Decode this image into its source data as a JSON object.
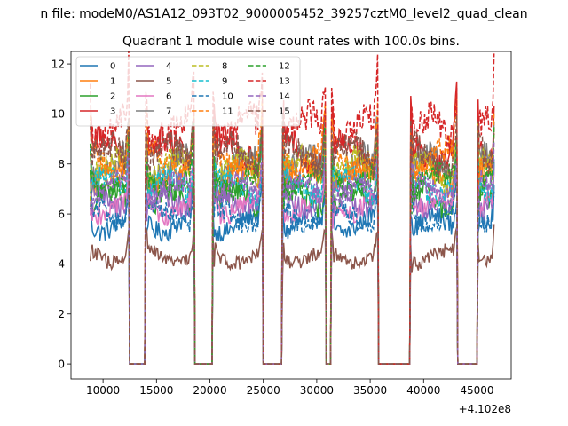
{
  "chart_data": {
    "type": "line",
    "suptitle": "n file: modeM0/AS1A12_093T02_9000005452_39257cztM0_level2_quad_clean",
    "title": "Quadrant 1 module wise count rates with 100.0s bins.",
    "xlabel": "",
    "ylabel": "",
    "x_offset_label": "+4.102e8",
    "xlim": [
      7000,
      48200
    ],
    "ylim": [
      -0.6,
      12.5
    ],
    "xticks": [
      10000,
      15000,
      20000,
      25000,
      30000,
      35000,
      40000,
      45000
    ],
    "yticks": [
      0,
      2,
      4,
      6,
      8,
      10,
      12
    ],
    "legend_position": "upper-left",
    "legend_columns": 4,
    "active_segments": [
      [
        8800,
        12400
      ],
      [
        14000,
        18500
      ],
      [
        20300,
        24900
      ],
      [
        26800,
        30800
      ],
      [
        31400,
        35700
      ],
      [
        38800,
        43100
      ],
      [
        45100,
        46600
      ]
    ],
    "gap_value": 0,
    "series": [
      {
        "name": "0",
        "level": 5.6,
        "color": "#1f77b4",
        "dash": "solid"
      },
      {
        "name": "1",
        "level": 7.5,
        "color": "#ff7f0e",
        "dash": "solid"
      },
      {
        "name": "2",
        "level": 6.6,
        "color": "#2ca02c",
        "dash": "solid"
      },
      {
        "name": "3",
        "level": 8.6,
        "color": "#d62728",
        "dash": "solid"
      },
      {
        "name": "4",
        "level": 6.6,
        "color": "#9467bd",
        "dash": "solid"
      },
      {
        "name": "5",
        "level": 4.3,
        "color": "#8c564b",
        "dash": "solid"
      },
      {
        "name": "6",
        "level": 6.3,
        "color": "#e377c2",
        "dash": "solid"
      },
      {
        "name": "7",
        "level": 7.9,
        "color": "#7f7f7f",
        "dash": "solid"
      },
      {
        "name": "8",
        "level": 7.8,
        "color": "#bcbd22",
        "dash": "dashed"
      },
      {
        "name": "9",
        "level": 7.1,
        "color": "#17becf",
        "dash": "dashed"
      },
      {
        "name": "10",
        "level": 5.9,
        "color": "#1f77b4",
        "dash": "dashed"
      },
      {
        "name": "11",
        "level": 8.2,
        "color": "#ff7f0e",
        "dash": "dashed"
      },
      {
        "name": "12",
        "level": 7.3,
        "color": "#2ca02c",
        "dash": "dashed"
      },
      {
        "name": "13",
        "level": 9.4,
        "color": "#d62728",
        "dash": "dashed"
      },
      {
        "name": "14",
        "level": 6.9,
        "color": "#9467bd",
        "dash": "dashed"
      },
      {
        "name": "15",
        "level": 8.3,
        "color": "#8c564b",
        "dash": "dashed"
      }
    ]
  }
}
